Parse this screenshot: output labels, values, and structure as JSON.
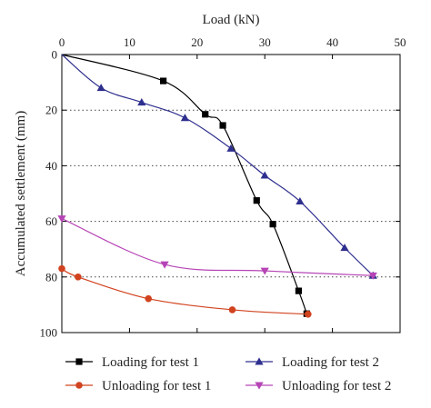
{
  "chart_data": {
    "type": "line",
    "xlabel": "Load (kN)",
    "ylabel": "Accumulated settlement (mm)",
    "xlim": [
      0,
      50
    ],
    "ylim": [
      0,
      100
    ],
    "x_ticks": [
      0,
      10,
      20,
      30,
      40,
      50
    ],
    "y_ticks": [
      0,
      20,
      40,
      60,
      80,
      100
    ],
    "x_axis_position": "top",
    "y_inverted": true,
    "grid": "dotted horizontal lines at 20, 40, 60, 80",
    "legend_position": "bottom",
    "series": [
      {
        "name": "Loading for test 1",
        "color": "#000000",
        "marker": "square",
        "points": [
          [
            0,
            0
          ],
          [
            15,
            9.5
          ],
          [
            21.2,
            21.5
          ],
          [
            23.8,
            25.5
          ],
          [
            28.8,
            52.5
          ],
          [
            31.2,
            61
          ],
          [
            35,
            85
          ],
          [
            36.2,
            93.2
          ]
        ]
      },
      {
        "name": "Loading for test 2",
        "color": "#2f2f8f",
        "marker": "triangle-up",
        "points": [
          [
            0,
            0
          ],
          [
            5.8,
            12
          ],
          [
            11.8,
            17.2
          ],
          [
            18.2,
            22.8
          ],
          [
            25,
            33.8
          ],
          [
            30,
            43.5
          ],
          [
            35.2,
            52.8
          ],
          [
            41.8,
            69.5
          ],
          [
            46,
            79.5
          ]
        ]
      },
      {
        "name": "Unloading for test 1",
        "color": "#d1431f",
        "marker": "circle",
        "points": [
          [
            0,
            77
          ],
          [
            2.4,
            80
          ],
          [
            12.8,
            87.8
          ],
          [
            25.2,
            91.8
          ],
          [
            36.4,
            93.4
          ]
        ]
      },
      {
        "name": "Unloading for test 2",
        "color": "#b644b6",
        "marker": "triangle-down",
        "points": [
          [
            0,
            59
          ],
          [
            15.2,
            75.5
          ],
          [
            30,
            77.8
          ],
          [
            46,
            79.5
          ]
        ]
      }
    ]
  }
}
